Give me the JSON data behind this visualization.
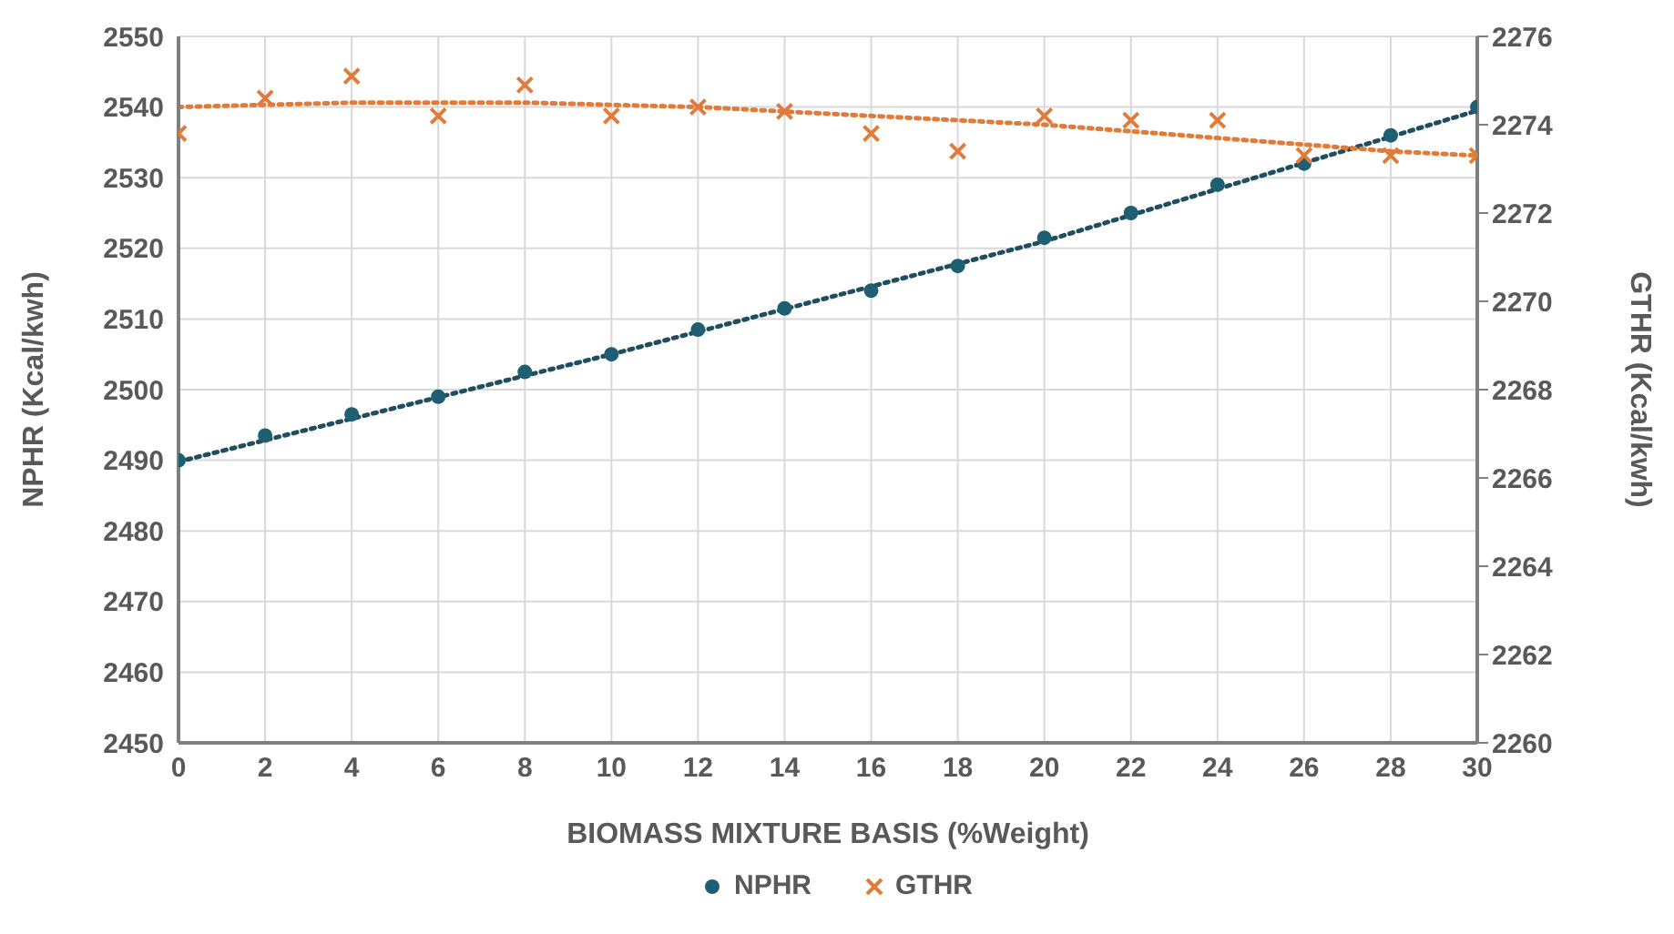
{
  "chart_data": {
    "type": "scatter",
    "xlabel": "BIOMASS MIXTURE BASIS (%Weight)",
    "ylabel": "NPHR (Kcal/kwh)",
    "y2label": "GTHR (Kcal/kwh)",
    "x": [
      0,
      2,
      4,
      6,
      8,
      10,
      12,
      14,
      16,
      18,
      20,
      22,
      24,
      26,
      28,
      30
    ],
    "series": [
      {
        "name": "NPHR",
        "color": "#1f5f74",
        "marker": "circle",
        "values": [
          2490,
          2493.5,
          2496.5,
          2499,
          2502.5,
          2505,
          2508.5,
          2511.5,
          2514,
          2517.5,
          2521.5,
          2525,
          2529,
          2532,
          2536,
          2540
        ]
      },
      {
        "name": "GTHR",
        "color": "#e07b39",
        "marker": "cross",
        "axis": "y2",
        "values": [
          2273.8,
          2274.6,
          2275.1,
          2274.2,
          2274.9,
          2274.2,
          2274.4,
          2274.3,
          2273.8,
          2273.4,
          2274.2,
          2274.1,
          2274.1,
          2273.3,
          2273.3,
          2273.3
        ]
      },
      {
        "type": "line",
        "color": "#1f4e5f",
        "line_style": "dotted",
        "x": [
          0,
          10,
          20,
          30
        ],
        "values": [
          2489.8,
          2505,
          2521,
          2539.5
        ]
      },
      {
        "type": "line",
        "color": "#e07b39",
        "line_style": "dotted",
        "axis": "y2",
        "x": [
          0,
          4,
          8,
          12,
          16,
          20,
          24,
          28,
          30
        ],
        "values": [
          2274.4,
          2274.5,
          2274.5,
          2274.4,
          2274.2,
          2274.0,
          2273.7,
          2273.4,
          2273.3
        ]
      }
    ],
    "xlim": [
      0,
      30
    ],
    "xticks": [
      0,
      2,
      4,
      6,
      8,
      10,
      12,
      14,
      16,
      18,
      20,
      22,
      24,
      26,
      28,
      30
    ],
    "ylim": [
      2450,
      2550
    ],
    "yticks": [
      2450,
      2460,
      2470,
      2480,
      2490,
      2500,
      2510,
      2520,
      2530,
      2540,
      2550
    ],
    "y2lim": [
      2260,
      2276
    ],
    "y2ticks": [
      2260,
      2262,
      2264,
      2266,
      2268,
      2270,
      2272,
      2274,
      2276
    ],
    "grid": true,
    "legend": "bottom"
  }
}
